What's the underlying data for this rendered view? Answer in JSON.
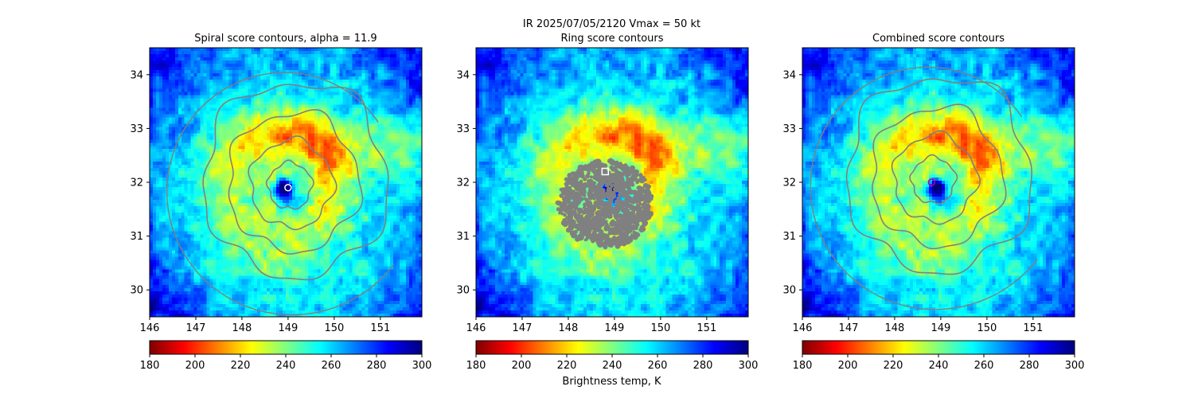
{
  "figure": {
    "suptitle": "IR  2025/07/05/2120    Vmax = 50 kt",
    "colorbar_label": "Brightness temp, K",
    "colormap": [
      "#7f0000",
      "#ff0000",
      "#ff8000",
      "#ffff00",
      "#80ff80",
      "#00ffff",
      "#0080ff",
      "#0000ff",
      "#00007f"
    ],
    "contour_color": "#808080",
    "center_marker_color": "#ffffff",
    "combined_marker_color": "#b000b0"
  },
  "chart_data": [
    {
      "type": "heatmap",
      "title": "Spiral score contours, alpha = 11.9",
      "xlim": [
        146,
        151.9
      ],
      "ylim": [
        29.5,
        34.5
      ],
      "xticks": [
        "146",
        "147",
        "148",
        "149",
        "150",
        "151"
      ],
      "yticks": [
        "30",
        "31",
        "32",
        "33",
        "34"
      ],
      "colorbar": {
        "range": [
          180,
          300
        ],
        "ticks": [
          "180",
          "200",
          "220",
          "240",
          "260",
          "280",
          "300"
        ]
      },
      "storm_center": [
        149.0,
        31.9
      ]
    },
    {
      "type": "heatmap",
      "title": "Ring score contours",
      "xlim": [
        146,
        151.9
      ],
      "ylim": [
        29.5,
        34.5
      ],
      "xticks": [
        "146",
        "147",
        "148",
        "149",
        "150",
        "151"
      ],
      "yticks": [
        "30",
        "31",
        "32",
        "33",
        "34"
      ],
      "colorbar": {
        "range": [
          180,
          300
        ],
        "ticks": [
          "180",
          "200",
          "220",
          "240",
          "260",
          "280",
          "300"
        ]
      },
      "ring_center": [
        148.8,
        32.2
      ]
    },
    {
      "type": "heatmap",
      "title": "Combined score contours",
      "xlim": [
        146,
        151.9
      ],
      "ylim": [
        29.5,
        34.5
      ],
      "xticks": [
        "146",
        "147",
        "148",
        "149",
        "150",
        "151"
      ],
      "yticks": [
        "30",
        "31",
        "32",
        "33",
        "34"
      ],
      "colorbar": {
        "range": [
          180,
          300
        ],
        "ticks": [
          "180",
          "200",
          "220",
          "240",
          "260",
          "280",
          "300"
        ]
      },
      "storm_center": [
        148.8,
        32.0
      ]
    }
  ]
}
